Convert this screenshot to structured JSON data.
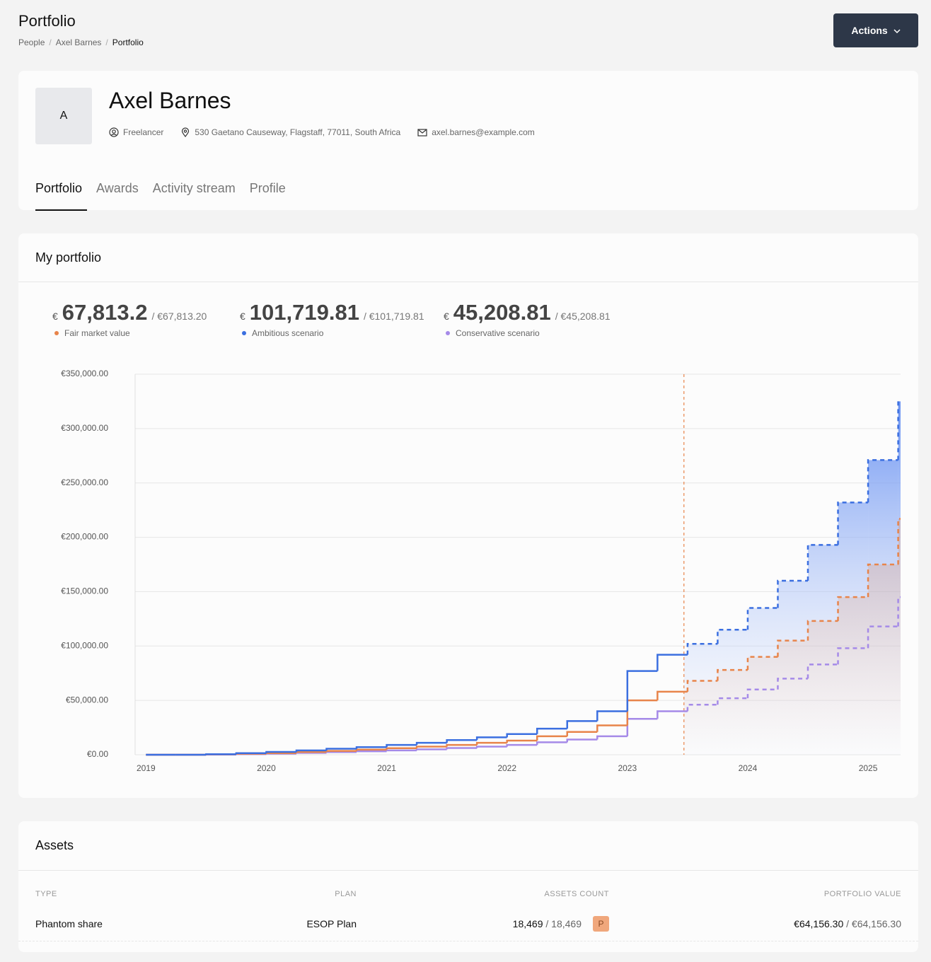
{
  "header": {
    "title": "Portfolio",
    "breadcrumbs": [
      "People",
      "Axel Barnes",
      "Portfolio"
    ],
    "actions": "Actions"
  },
  "profile": {
    "initial": "A",
    "name": "Axel Barnes",
    "role": "Freelancer",
    "address": "530 Gaetano Causeway, Flagstaff, 77011, South Africa",
    "email": "axel.barnes@example.com"
  },
  "tabs": [
    "Portfolio",
    "Awards",
    "Activity stream",
    "Profile"
  ],
  "portfolio": {
    "title": "My portfolio",
    "stats": [
      {
        "currency": "€",
        "value": "67,813.2",
        "total": "/ €67,813.20"
      },
      {
        "currency": "€",
        "value": "101,719.81",
        "total": "/ €101,719.81"
      },
      {
        "currency": "€",
        "value": "45,208.81",
        "total": "/ €45,208.81"
      }
    ]
  },
  "chart_data": {
    "type": "step",
    "xlim": [
      2018.91,
      2025.27
    ],
    "xticks": [
      2019,
      2020,
      2021,
      2022,
      2023,
      2024,
      2025
    ],
    "ylim": [
      0,
      350000
    ],
    "yticks": [
      {
        "value": 0,
        "label": "€0.00"
      },
      {
        "value": 50000,
        "label": "€50,000.00"
      },
      {
        "value": 100000,
        "label": "€100,000.00"
      },
      {
        "value": 150000,
        "label": "€150,000.00"
      },
      {
        "value": 200000,
        "label": "€200,000.00"
      },
      {
        "value": 250000,
        "label": "€250,000.00"
      },
      {
        "value": 300000,
        "label": "€300,000.00"
      },
      {
        "value": 350000,
        "label": "€350,000.00"
      }
    ],
    "grid": true,
    "forecast_x": 2023.47,
    "x": [
      2019,
      2019.25,
      2019.5,
      2019.75,
      2020,
      2020.25,
      2020.5,
      2020.75,
      2021,
      2021.25,
      2021.5,
      2021.75,
      2022,
      2022.25,
      2022.5,
      2022.75,
      2023,
      2023.25,
      2023.5,
      2023.75,
      2024,
      2024.25,
      2024.5,
      2024.75,
      2025,
      2025.25
    ],
    "series": [
      {
        "name": "Fair market value",
        "color": "#e8844a",
        "values": [
          0,
          0,
          300,
          900,
          1500,
          2500,
          3500,
          4700,
          6000,
          7500,
          9000,
          11000,
          13000,
          17000,
          21000,
          27000,
          50000,
          58000,
          68000,
          78000,
          90000,
          105000,
          123000,
          145000,
          175000,
          217000
        ]
      },
      {
        "name": "Ambitious scenario",
        "color": "#3b6fe0",
        "values": [
          0,
          0,
          500,
          1500,
          2600,
          4000,
          5500,
          7000,
          9000,
          11000,
          13500,
          16000,
          19000,
          24000,
          31000,
          40000,
          77000,
          92000,
          102000,
          115000,
          135000,
          160000,
          193000,
          232000,
          271000,
          325000
        ]
      },
      {
        "name": "Conservative scenario",
        "color": "#a58ae8",
        "values": [
          0,
          0,
          200,
          600,
          1000,
          1700,
          2400,
          3200,
          4000,
          5000,
          6200,
          7500,
          9000,
          11500,
          14000,
          17000,
          33000,
          40000,
          46000,
          52000,
          60000,
          70000,
          83000,
          98000,
          118000,
          145000
        ]
      }
    ]
  },
  "assets": {
    "title": "Assets",
    "columns": [
      "TYPE",
      "PLAN",
      "ASSETS COUNT",
      "PORTFOLIO VALUE"
    ],
    "rows": [
      {
        "type": "Phantom share",
        "plan": "ESOP Plan",
        "count": "18,469",
        "count_total": "/ 18,469",
        "badge": "P",
        "value": "€64,156.30",
        "value_total": "/ €64,156.30"
      }
    ]
  }
}
